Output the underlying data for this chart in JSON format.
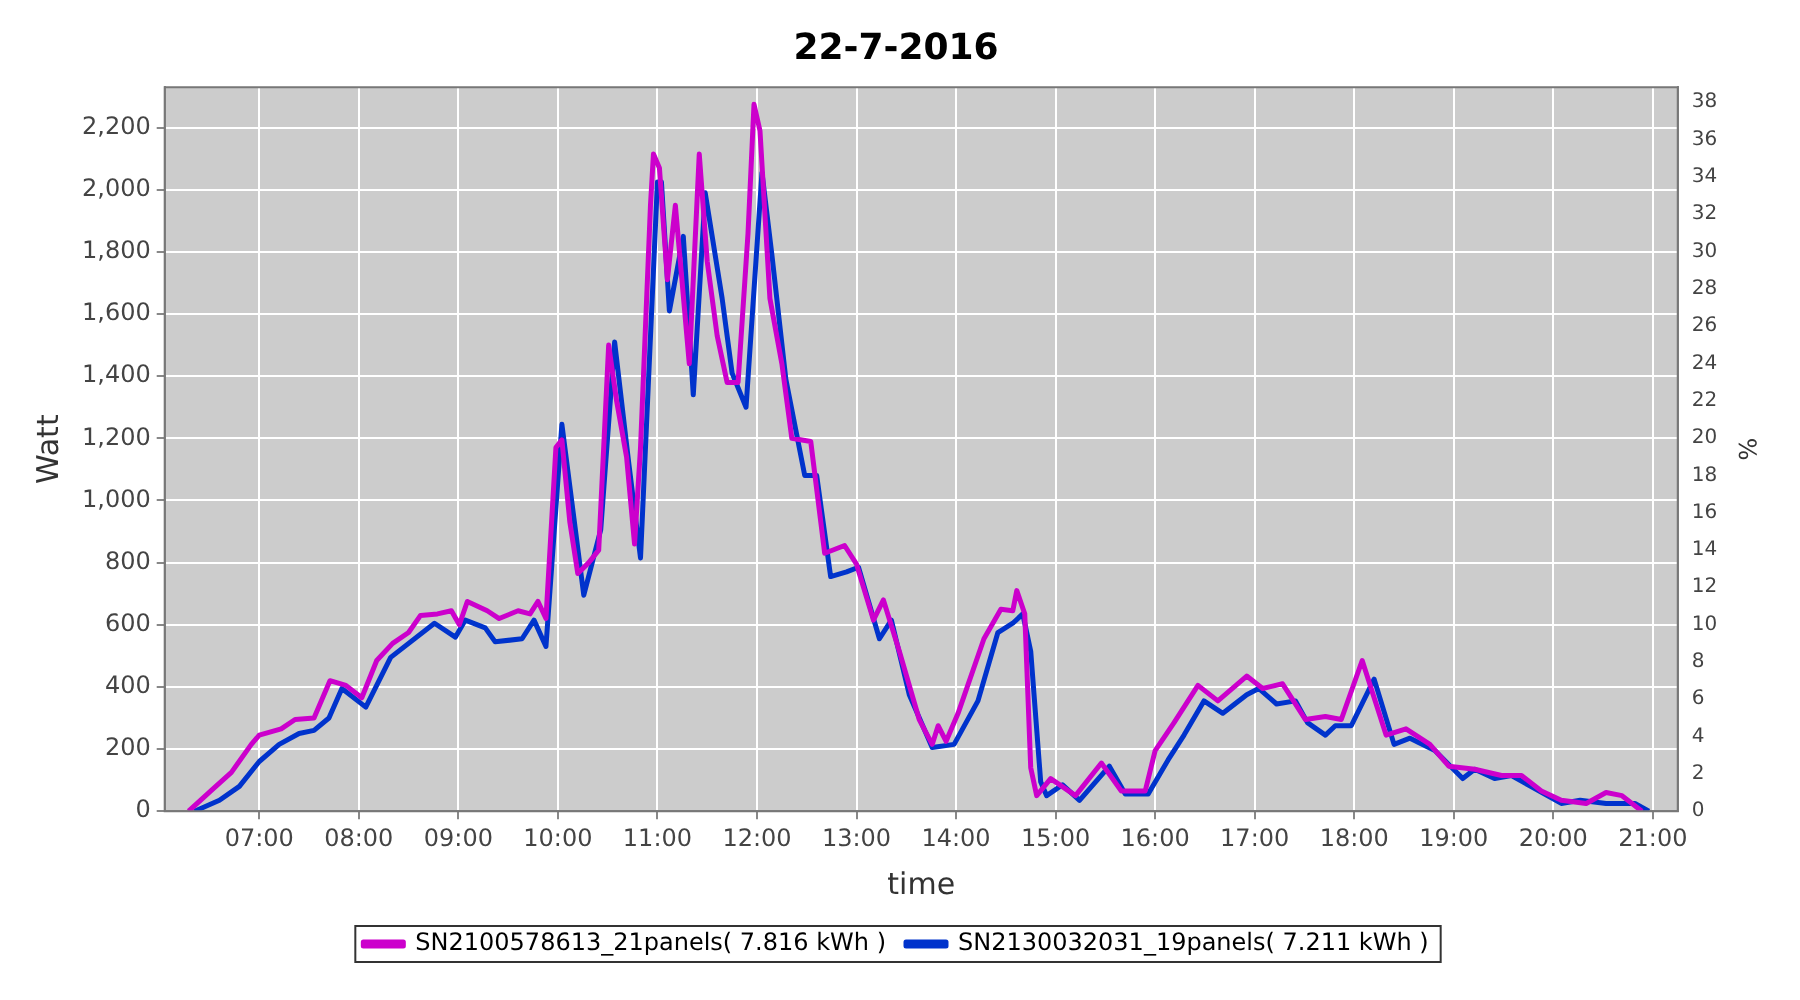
{
  "chart_data": {
    "type": "line",
    "title": "22-7-2016",
    "xlabel": "time",
    "ylabel": "Watt",
    "y2label": "%",
    "xlim": [
      6.05,
      21.25
    ],
    "xticks": [
      {
        "value": 7,
        "label": "07:00"
      },
      {
        "value": 8,
        "label": "08:00"
      },
      {
        "value": 9,
        "label": "09:00"
      },
      {
        "value": 10,
        "label": "10:00"
      },
      {
        "value": 11,
        "label": "11:00"
      },
      {
        "value": 12,
        "label": "12:00"
      },
      {
        "value": 13,
        "label": "13:00"
      },
      {
        "value": 14,
        "label": "14:00"
      },
      {
        "value": 15,
        "label": "15:00"
      },
      {
        "value": 16,
        "label": "16:00"
      },
      {
        "value": 17,
        "label": "17:00"
      },
      {
        "value": 18,
        "label": "18:00"
      },
      {
        "value": 19,
        "label": "19:00"
      },
      {
        "value": 20,
        "label": "20:00"
      },
      {
        "value": 21,
        "label": "21:00"
      }
    ],
    "ylim": [
      0,
      2330
    ],
    "yticks": [
      0,
      200,
      400,
      600,
      800,
      {
        "value": 1000,
        "label": "1,000"
      },
      {
        "value": 1200,
        "label": "1,200"
      },
      {
        "value": 1400,
        "label": "1,400"
      },
      {
        "value": 1600,
        "label": "1,600"
      },
      {
        "value": 1800,
        "label": "1,800"
      },
      {
        "value": 2000,
        "label": "2,000"
      },
      {
        "value": 2200,
        "label": "2,200"
      }
    ],
    "y2lim": [
      0,
      38.8
    ],
    "y2ticks": [
      0,
      2,
      4,
      6,
      8,
      10,
      12,
      14,
      16,
      18,
      20,
      22,
      24,
      26,
      28,
      30,
      32,
      34,
      36,
      38
    ],
    "grid": true,
    "legend": "bottom",
    "line_style": "solid",
    "series": [
      {
        "name": "SN2100578613_21panels( 7.816 kWh )",
        "color": "#cc00cc",
        "x": [
          6.29,
          6.53,
          6.72,
          6.92,
          7.0,
          7.22,
          7.36,
          7.55,
          7.71,
          7.87,
          8.03,
          8.18,
          8.34,
          8.5,
          8.62,
          8.79,
          8.93,
          9.01,
          9.09,
          9.29,
          9.41,
          9.6,
          9.72,
          9.8,
          9.88,
          9.98,
          10.04,
          10.12,
          10.2,
          10.31,
          10.41,
          10.51,
          10.59,
          10.69,
          10.77,
          10.83,
          10.93,
          10.96,
          11.02,
          11.1,
          11.18,
          11.32,
          11.42,
          11.5,
          11.6,
          11.7,
          11.81,
          11.91,
          11.97,
          12.03,
          12.13,
          12.25,
          12.35,
          12.54,
          12.68,
          12.88,
          13.0,
          13.17,
          13.27,
          13.43,
          13.63,
          13.76,
          13.82,
          13.9,
          14.02,
          14.28,
          14.45,
          14.57,
          14.61,
          14.69,
          14.75,
          14.81,
          14.95,
          15.2,
          15.46,
          15.66,
          15.9,
          16.0,
          16.19,
          16.43,
          16.63,
          16.92,
          17.08,
          17.28,
          17.51,
          17.71,
          17.87,
          18.08,
          18.32,
          18.52,
          18.76,
          18.95,
          19.21,
          19.48,
          19.68,
          19.88,
          20.08,
          20.33,
          20.53,
          20.69,
          20.89
        ],
        "values": [
          0,
          70,
          125,
          215,
          245,
          265,
          295,
          300,
          420,
          405,
          365,
          485,
          540,
          575,
          630,
          635,
          645,
          600,
          675,
          645,
          620,
          645,
          635,
          675,
          620,
          1170,
          1195,
          930,
          765,
          800,
          840,
          1500,
          1320,
          1140,
          860,
          1170,
          1950,
          2115,
          2070,
          1710,
          1950,
          1440,
          2115,
          1770,
          1530,
          1380,
          1380,
          1860,
          2275,
          2190,
          1650,
          1440,
          1200,
          1190,
          830,
          855,
          795,
          615,
          680,
          515,
          295,
          215,
          275,
          225,
          315,
          555,
          650,
          645,
          710,
          635,
          140,
          50,
          105,
          50,
          155,
          65,
          65,
          195,
          285,
          405,
          355,
          435,
          395,
          410,
          295,
          305,
          295,
          485,
          245,
          265,
          215,
          145,
          135,
          115,
          115,
          65,
          35,
          25,
          60,
          50,
          0
        ]
      },
      {
        "name": "SN2130032031_19panels( 7.211 kWh )",
        "color": "#0033cc",
        "x": [
          6.35,
          6.6,
          6.8,
          7.0,
          7.2,
          7.4,
          7.55,
          7.7,
          7.83,
          8.07,
          8.32,
          8.76,
          8.97,
          9.07,
          9.27,
          9.37,
          9.64,
          9.76,
          9.88,
          10.04,
          10.26,
          10.43,
          10.57,
          10.71,
          10.83,
          11.0,
          11.04,
          11.12,
          11.26,
          11.36,
          11.48,
          11.65,
          11.75,
          11.89,
          12.05,
          12.15,
          12.29,
          12.48,
          12.6,
          12.74,
          12.9,
          13.02,
          13.23,
          13.35,
          13.53,
          13.76,
          13.98,
          14.22,
          14.42,
          14.57,
          14.67,
          14.75,
          14.85,
          14.91,
          15.07,
          15.24,
          15.54,
          15.7,
          15.93,
          16.13,
          16.29,
          16.49,
          16.68,
          16.92,
          17.04,
          17.22,
          17.41,
          17.53,
          17.71,
          17.81,
          17.97,
          18.2,
          18.4,
          18.56,
          18.81,
          19.09,
          19.21,
          19.41,
          19.58,
          19.8,
          20.08,
          20.27,
          20.53,
          20.82,
          20.96
        ],
        "values": [
          0,
          35,
          80,
          160,
          215,
          250,
          260,
          300,
          395,
          335,
          495,
          605,
          560,
          615,
          590,
          545,
          555,
          615,
          530,
          1245,
          695,
          905,
          1510,
          1125,
          815,
          2025,
          2025,
          1610,
          1850,
          1340,
          1990,
          1650,
          1410,
          1300,
          2055,
          1790,
          1390,
          1080,
          1080,
          755,
          770,
          785,
          555,
          615,
          375,
          205,
          215,
          355,
          575,
          605,
          635,
          515,
          95,
          50,
          85,
          35,
          145,
          55,
          55,
          165,
          245,
          355,
          315,
          375,
          395,
          345,
          355,
          285,
          245,
          275,
          275,
          425,
          215,
          235,
          195,
          105,
          135,
          105,
          115,
          75,
          25,
          35,
          25,
          25,
          0
        ]
      }
    ]
  }
}
